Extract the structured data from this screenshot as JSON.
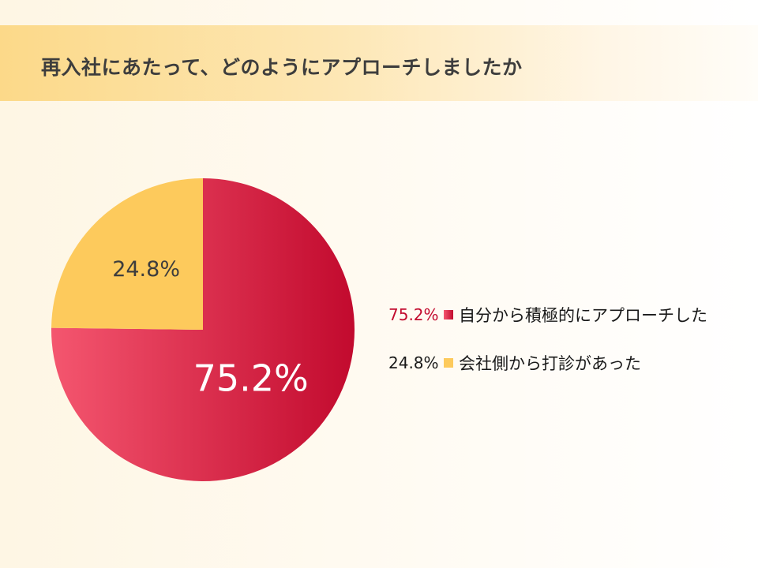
{
  "title": "再入社にあたって、どのようにアプローチしましたか",
  "colors": {
    "accent_red": "#c8102e",
    "accent_red_light": "#f4566f",
    "accent_yellow": "#fdca5c",
    "text_dark": "#3d3d3d"
  },
  "chart_data": {
    "type": "pie",
    "unit": "%",
    "slices": [
      {
        "label": "自分から積極的にアプローチした",
        "value": 75.2,
        "display": "75.2%",
        "color": "#c8102e"
      },
      {
        "label": "会社側から打診があった",
        "value": 24.8,
        "display": "24.8%",
        "color": "#fdca5c"
      }
    ],
    "legend_position": "right"
  }
}
